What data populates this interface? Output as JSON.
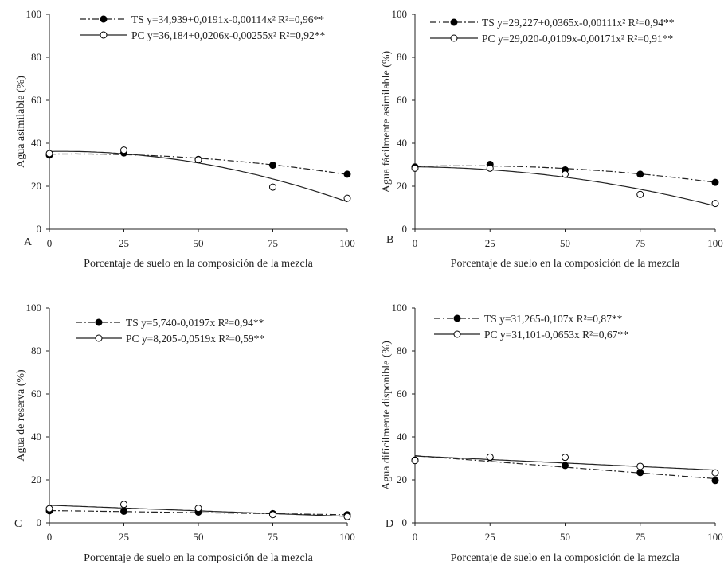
{
  "chart_data": [
    {
      "type": "scatter",
      "panel_label": "A",
      "xlabel": "Porcentaje de suelo en la composición de la mezcla",
      "ylabel": "Agua asimilable (%)",
      "xlim": [
        0,
        100
      ],
      "ylim": [
        0,
        100
      ],
      "xticks": [
        "0",
        "25",
        "50",
        "75",
        "100"
      ],
      "yticks": [
        "0",
        "20",
        "40",
        "60",
        "80",
        "100"
      ],
      "legend_position": "top-left",
      "series": [
        {
          "name": "TS",
          "equation": "y=34,939+0,0191x-0,00114x² R²=0,96**",
          "marker": "filled",
          "line": "dash-dot",
          "x": [
            0,
            25,
            50,
            75,
            100
          ],
          "y": [
            34.5,
            35.5,
            32.5,
            29.8,
            25.6
          ],
          "fit": {
            "kind": "quadratic",
            "a": 34.939,
            "b": 0.0191,
            "c": -0.00114
          }
        },
        {
          "name": "PC",
          "equation": "y=36,184+0,0206x-0,00255x² R²=0,92**",
          "marker": "open",
          "line": "solid",
          "x": [
            0,
            25,
            50,
            75,
            100
          ],
          "y": [
            35.2,
            36.8,
            32.3,
            19.6,
            14.4
          ],
          "fit": {
            "kind": "quadratic",
            "a": 36.184,
            "b": 0.0206,
            "c": -0.00255
          }
        }
      ]
    },
    {
      "type": "scatter",
      "panel_label": "B",
      "xlabel": "Porcentaje de suelo en la composición de la mezcla",
      "ylabel": "Agua fácilmente asimilable (%)",
      "xlim": [
        0,
        100
      ],
      "ylim": [
        0,
        100
      ],
      "xticks": [
        "0",
        "25",
        "50",
        "75",
        "100"
      ],
      "yticks": [
        "0",
        "20",
        "40",
        "60",
        "80",
        "100"
      ],
      "legend_position": "top-left",
      "series": [
        {
          "name": "TS",
          "equation": "y=29,227+0,0365x-0,00111x² R²=0,94**",
          "marker": "filled",
          "line": "dash-dot",
          "x": [
            0,
            25,
            50,
            75,
            100
          ],
          "y": [
            29.0,
            30.2,
            27.6,
            25.6,
            21.8
          ],
          "fit": {
            "kind": "quadratic",
            "a": 29.227,
            "b": 0.0365,
            "c": -0.00111
          }
        },
        {
          "name": "PC",
          "equation": "y=29,020-0,0109x-0,00171x² R²=0,91**",
          "marker": "open",
          "line": "solid",
          "x": [
            0,
            25,
            50,
            75,
            100
          ],
          "y": [
            28.4,
            28.4,
            25.6,
            16.2,
            12.0
          ],
          "fit": {
            "kind": "quadratic",
            "a": 29.02,
            "b": -0.0109,
            "c": -0.00171
          }
        }
      ]
    },
    {
      "type": "scatter",
      "panel_label": "C",
      "xlabel": "Porcentaje de suelo en la composición de la mezcla",
      "ylabel": "Agua de reserva (%)",
      "xlim": [
        0,
        100
      ],
      "ylim": [
        0,
        100
      ],
      "xticks": [
        "0",
        "25",
        "50",
        "75",
        "100"
      ],
      "yticks": [
        "0",
        "20",
        "40",
        "60",
        "80",
        "100"
      ],
      "legend_position": "top-right",
      "series": [
        {
          "name": "TS",
          "equation": "y=5,740-0,0197x R²=0,94**",
          "marker": "filled",
          "line": "dash-dot",
          "x": [
            0,
            25,
            50,
            75,
            100
          ],
          "y": [
            5.6,
            5.4,
            5.0,
            4.3,
            3.8
          ],
          "fit": {
            "kind": "linear",
            "a": 5.74,
            "b": -0.0197
          }
        },
        {
          "name": "PC",
          "equation": "y=8,205-0,0519x R²=0,59**",
          "marker": "open",
          "line": "solid",
          "x": [
            0,
            25,
            50,
            75,
            100
          ],
          "y": [
            6.6,
            8.6,
            6.8,
            3.8,
            2.9
          ],
          "fit": {
            "kind": "linear",
            "a": 8.205,
            "b": -0.0519
          }
        }
      ]
    },
    {
      "type": "scatter",
      "panel_label": "D",
      "xlabel": "Porcentaje de suelo en la composición de la mezcla",
      "ylabel": "Agua difícilmente disponible (%)",
      "xlim": [
        0,
        100
      ],
      "ylim": [
        0,
        100
      ],
      "xticks": [
        "0",
        "25",
        "50",
        "75",
        "100"
      ],
      "yticks": [
        "0",
        "20",
        "40",
        "60",
        "80",
        "100"
      ],
      "legend_position": "top-left",
      "series": [
        {
          "name": "TS",
          "equation": "y=31,265-0,107x R²=0,87**",
          "marker": "filled",
          "line": "dash-dot",
          "x": [
            0,
            25,
            50,
            75,
            100
          ],
          "y": [
            29.2,
            30.4,
            26.7,
            23.4,
            19.7
          ],
          "fit": {
            "kind": "linear",
            "a": 31.265,
            "b": -0.107
          }
        },
        {
          "name": "PC",
          "equation": "y=31,101-0,0653x R²=0,67**",
          "marker": "open",
          "line": "solid",
          "x": [
            0,
            25,
            50,
            75,
            100
          ],
          "y": [
            29.0,
            30.6,
            30.5,
            26.3,
            23.3
          ],
          "fit": {
            "kind": "linear",
            "a": 31.101,
            "b": -0.0653
          }
        }
      ]
    }
  ]
}
